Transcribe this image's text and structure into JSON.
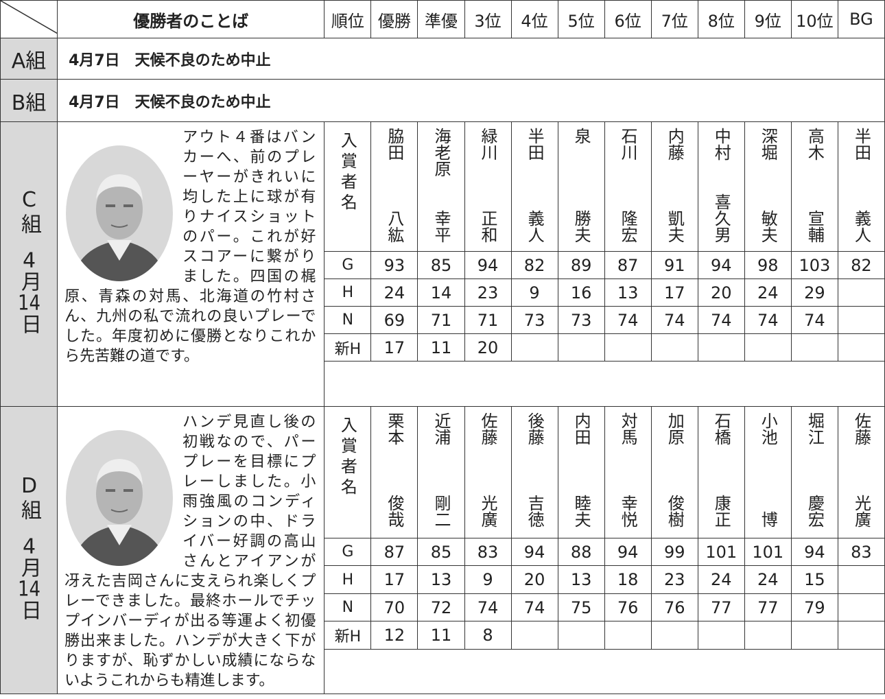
{
  "header": {
    "columns": [
      "優勝者のことば",
      "順位",
      "優勝",
      "準優",
      "3位",
      "4位",
      "5位",
      "6位",
      "7位",
      "8位",
      "9位",
      "10位",
      "BG"
    ]
  },
  "groups": [
    {
      "label": "A組",
      "notice": "4月7日　天候不良のため中止"
    },
    {
      "label": "B組",
      "notice": "4月7日　天候不良のため中止"
    },
    {
      "label": "C組",
      "date": "4月14日",
      "comment": "アウト４番はバンカーへ、前のプレーヤーがきれいに均した上に球が有りナイスショットのパー。これが好スコアーに繋がりました。四国の梶原、青森の対馬、北海道の竹村さん、九州の私で流れの良いプレーでした。年度初めに優勝となりこれから先苦難の道です。",
      "names_label": "入賞者名",
      "names": [
        [
          "脇田",
          "八紘"
        ],
        [
          "海老原",
          "幸平"
        ],
        [
          "緑川",
          "正和"
        ],
        [
          "半田",
          "義人"
        ],
        [
          "泉",
          "勝夫"
        ],
        [
          "石川",
          "隆宏"
        ],
        [
          "内藤",
          "凱夫"
        ],
        [
          "中村",
          "喜久男"
        ],
        [
          "深堀",
          "敏夫"
        ],
        [
          "高木",
          "宣輔"
        ],
        [
          "半田",
          "義人"
        ]
      ],
      "rows": [
        {
          "label": "G",
          "values": [
            93,
            85,
            94,
            82,
            89,
            87,
            91,
            94,
            98,
            103,
            82
          ]
        },
        {
          "label": "H",
          "values": [
            24,
            14,
            23,
            9,
            16,
            13,
            17,
            20,
            24,
            29
          ]
        },
        {
          "label": "N",
          "values": [
            69,
            71,
            71,
            73,
            73,
            74,
            74,
            74,
            74,
            74
          ]
        },
        {
          "label": "新H",
          "values": [
            17,
            11,
            20
          ]
        }
      ]
    },
    {
      "label": "D組",
      "date": "4月14日",
      "comment": "ハンデ見直し後の初戦なので、パープレーを目標にプレーしました。小雨強風のコンディションの中、ドライバー好調の高山さんとアイアンが冴えた吉岡さんに支えられ楽しくプレーできました。最終ホールでチップインバーディが出る等運よく初優勝出来ました。ハンデが大きく下がりますが、恥ずかしい成績にならないようこれからも精進します。",
      "names_label": "入賞者名",
      "names": [
        [
          "栗本",
          "俊哉"
        ],
        [
          "近浦",
          "剛二"
        ],
        [
          "佐藤",
          "光廣"
        ],
        [
          "後藤",
          "吉徳"
        ],
        [
          "内田",
          "睦夫"
        ],
        [
          "対馬",
          "幸悦"
        ],
        [
          "加原",
          "俊樹"
        ],
        [
          "石橋",
          "康正"
        ],
        [
          "小池",
          "博"
        ],
        [
          "堀江",
          "慶宏"
        ],
        [
          "佐藤",
          "光廣"
        ]
      ],
      "rows": [
        {
          "label": "G",
          "values": [
            87,
            85,
            83,
            94,
            88,
            94,
            99,
            101,
            101,
            94,
            83
          ]
        },
        {
          "label": "H",
          "values": [
            17,
            13,
            9,
            20,
            13,
            18,
            23,
            24,
            24,
            15
          ]
        },
        {
          "label": "N",
          "values": [
            70,
            72,
            74,
            74,
            75,
            76,
            76,
            77,
            77,
            79
          ]
        },
        {
          "label": "新H",
          "values": [
            12,
            11,
            8
          ]
        }
      ]
    }
  ]
}
